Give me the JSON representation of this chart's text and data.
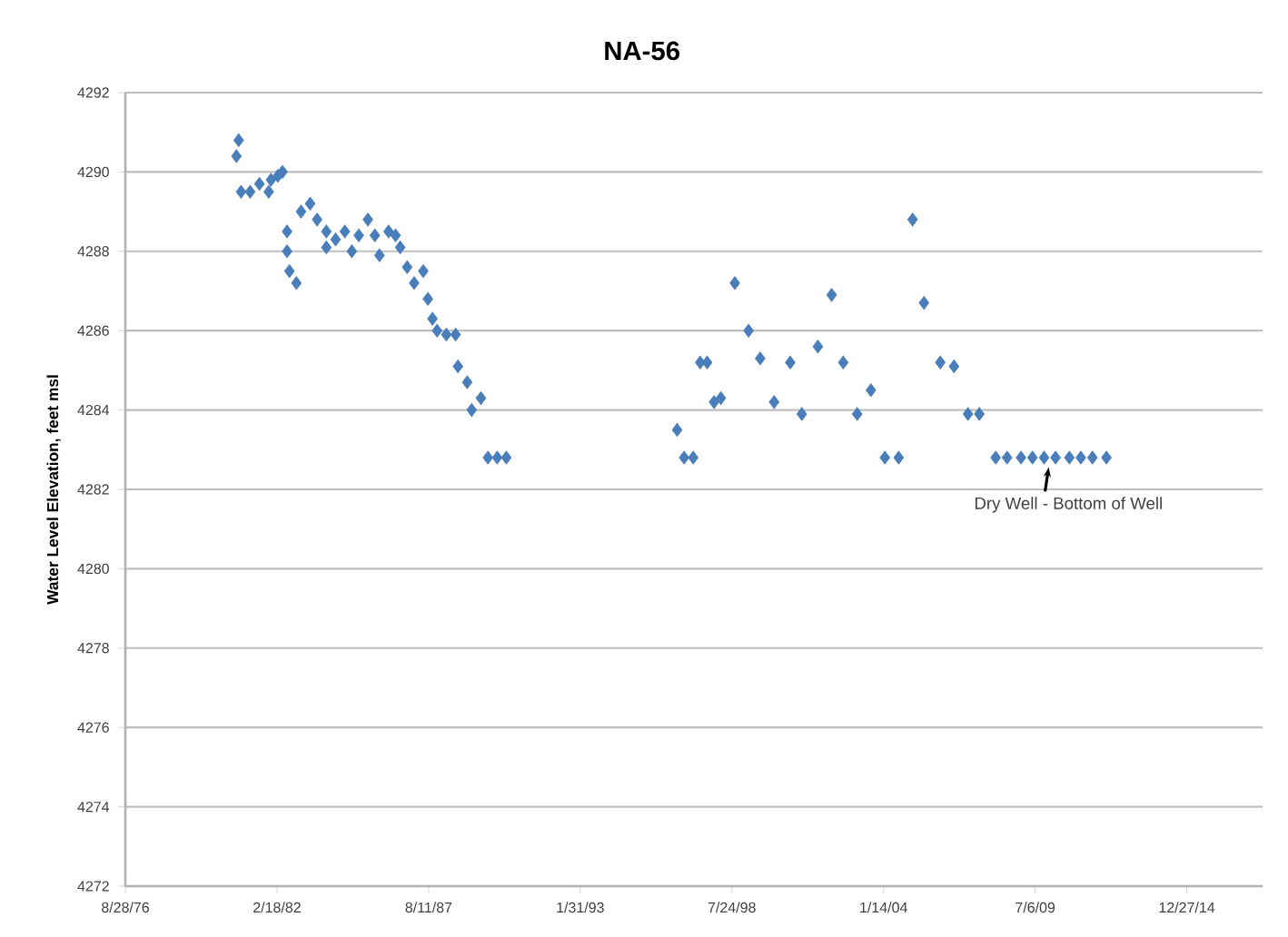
{
  "chart_data": {
    "type": "scatter",
    "title": "NA-56",
    "ylabel": "Water Level Elevation, feet msl",
    "x": [
      "1980-10",
      "1980-09",
      "1980-11",
      "1981-03",
      "1981-07",
      "1981-11",
      "1981-12",
      "1982-03",
      "1982-05",
      "1982-07",
      "1982-07",
      "1982-08",
      "1982-11",
      "1983-01",
      "1983-05",
      "1983-08",
      "1983-12",
      "1983-12",
      "1984-04",
      "1984-08",
      "1984-11",
      "1985-02",
      "1985-06",
      "1985-09",
      "1985-11",
      "1986-03",
      "1986-06",
      "1986-08",
      "1986-11",
      "1987-02",
      "1987-06",
      "1987-08",
      "1987-10",
      "1987-12",
      "1988-04",
      "1988-08",
      "1988-09",
      "1989-01",
      "1989-07",
      "1989-03",
      "1989-10",
      "1990-02",
      "1990-06",
      "1996-08",
      "1996-11",
      "1997-03",
      "1997-06",
      "1997-09",
      "1997-12",
      "1998-03",
      "1998-09",
      "1999-03",
      "1999-08",
      "2000-02",
      "2000-09",
      "2001-02",
      "2001-09",
      "2002-03",
      "2002-08",
      "2003-02",
      "2003-08",
      "2004-02",
      "2004-08",
      "2005-02",
      "2005-07",
      "2006-02",
      "2006-08",
      "2007-02",
      "2007-07",
      "2008-02",
      "2008-07",
      "2009-01",
      "2009-06",
      "2009-11",
      "2010-04",
      "2010-10",
      "2011-03",
      "2011-08",
      "2012-02"
    ],
    "values": [
      4290.8,
      4290.4,
      4289.5,
      4289.5,
      4289.7,
      4289.5,
      4289.8,
      4289.9,
      4290.0,
      4288.5,
      4288.0,
      4287.5,
      4287.2,
      4289.0,
      4289.2,
      4288.8,
      4288.5,
      4288.1,
      4288.3,
      4288.5,
      4288.0,
      4288.4,
      4288.8,
      4288.4,
      4287.9,
      4288.5,
      4288.4,
      4288.1,
      4287.6,
      4287.2,
      4287.5,
      4286.8,
      4286.3,
      4286.0,
      4285.9,
      4285.9,
      4285.1,
      4284.7,
      4284.3,
      4284.0,
      4282.8,
      4282.8,
      4282.8,
      4283.5,
      4282.8,
      4282.8,
      4285.2,
      4285.2,
      4284.2,
      4284.3,
      4287.2,
      4286.0,
      4285.3,
      4284.2,
      4285.2,
      4283.9,
      4285.6,
      4286.9,
      4285.2,
      4283.9,
      4284.5,
      4282.8,
      4282.8,
      4288.8,
      4286.7,
      4285.2,
      4285.1,
      4283.9,
      4283.9,
      4282.8,
      4282.8,
      4282.8,
      4282.8,
      4282.8,
      4282.8,
      4282.8,
      4282.8,
      4282.8,
      4282.8
    ],
    "color": "#4a7ebb",
    "marker": "diamond",
    "grid": "y",
    "xlim": [
      "1976-08-28",
      "2017-09-22"
    ],
    "xticks": [
      {
        "value": "1976-08-28",
        "label": "8/28/76"
      },
      {
        "value": "1982-02-18",
        "label": "2/18/82"
      },
      {
        "value": "1987-08-11",
        "label": "8/11/87"
      },
      {
        "value": "1993-01-31",
        "label": "1/31/93"
      },
      {
        "value": "1998-07-24",
        "label": "7/24/98"
      },
      {
        "value": "2004-01-14",
        "label": "1/14/04"
      },
      {
        "value": "2009-07-06",
        "label": "7/6/09"
      },
      {
        "value": "2014-12-27",
        "label": "12/27/14"
      }
    ],
    "ylim": [
      4272,
      4292
    ],
    "yticks": [
      4272,
      4274,
      4276,
      4278,
      4280,
      4282,
      4284,
      4286,
      4288,
      4290,
      4292
    ],
    "annotations": [
      {
        "text": "Dry Well - Bottom of Well",
        "x": "2010-01",
        "y": 4282.8
      }
    ]
  }
}
